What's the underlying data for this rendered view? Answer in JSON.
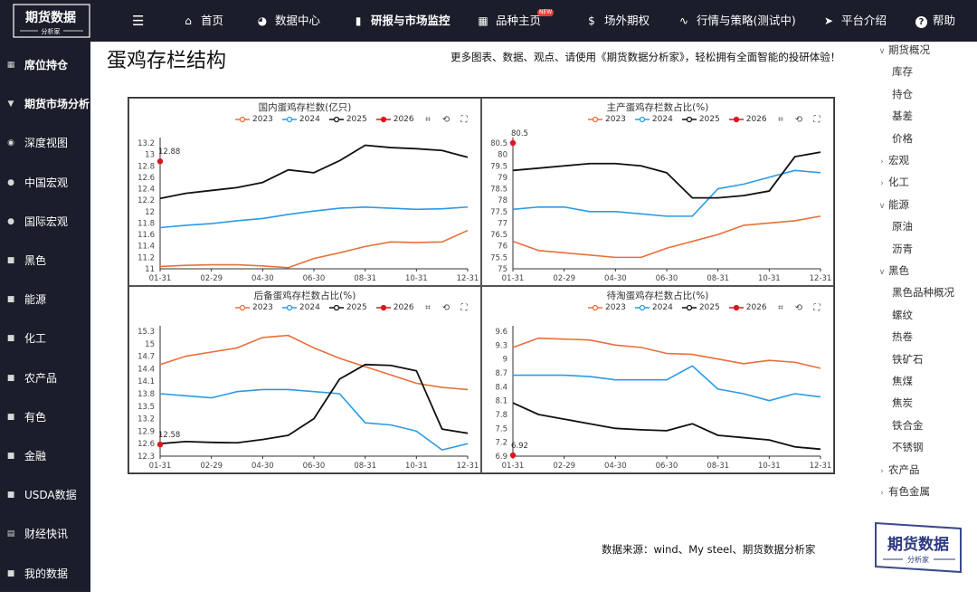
{
  "brand": {
    "name": "期货数据",
    "sub": "分析家"
  },
  "topnav": {
    "items": [
      {
        "label": "首页",
        "icon": "home-icon"
      },
      {
        "label": "数据中心",
        "icon": "pie-icon"
      },
      {
        "label": "研报与市场监控",
        "icon": "bar-chart-icon",
        "active": true
      },
      {
        "label": "品种主页",
        "icon": "grid-icon",
        "badge": "NEW"
      },
      {
        "label": "场外期权",
        "icon": "dollar-icon"
      },
      {
        "label": "行情与策略(测试中)",
        "icon": "pulse-icon"
      },
      {
        "label": "平台介绍",
        "icon": "send-icon"
      },
      {
        "label": "帮助",
        "icon": "help-icon"
      }
    ]
  },
  "sidebar": {
    "items": [
      {
        "label": "席位持仓",
        "icon": "grid-icon",
        "bold": true
      },
      {
        "label": "期货市场分析",
        "icon": "funnel-icon",
        "bold": true
      },
      {
        "label": "深度视图",
        "icon": "eye-icon"
      },
      {
        "label": "中国宏观",
        "icon": "dot-icon"
      },
      {
        "label": "国际宏观",
        "icon": "dot-icon"
      },
      {
        "label": "黑色",
        "icon": "cube-icon"
      },
      {
        "label": "能源",
        "icon": "cube-icon"
      },
      {
        "label": "化工",
        "icon": "cube-icon"
      },
      {
        "label": "农产品",
        "icon": "cube-icon"
      },
      {
        "label": "有色",
        "icon": "cube-icon"
      },
      {
        "label": "金融",
        "icon": "cube-icon"
      },
      {
        "label": "USDA数据",
        "icon": "cube-icon"
      },
      {
        "label": "财经快讯",
        "icon": "doc-icon"
      },
      {
        "label": "我的数据",
        "icon": "cube-icon"
      }
    ]
  },
  "page": {
    "title": "蛋鸡存栏结构",
    "promo": "更多图表、数据、观点、请使用《期货数据分析家》，轻松拥有全面智能的投研体验！",
    "source": "数据来源：wind、My steel、期货数据分析家"
  },
  "rightnav": {
    "items": [
      {
        "label": "期货概况",
        "type": "grp",
        "chev": "down"
      },
      {
        "label": "库存",
        "type": "sub"
      },
      {
        "label": "持仓",
        "type": "sub"
      },
      {
        "label": "基差",
        "type": "sub"
      },
      {
        "label": "价格",
        "type": "sub"
      },
      {
        "label": "宏观",
        "type": "grp",
        "chev": "right"
      },
      {
        "label": "化工",
        "type": "grp",
        "chev": "right"
      },
      {
        "label": "能源",
        "type": "grp",
        "chev": "down"
      },
      {
        "label": "原油",
        "type": "sub"
      },
      {
        "label": "沥青",
        "type": "sub"
      },
      {
        "label": "黑色",
        "type": "grp",
        "chev": "down"
      },
      {
        "label": "黑色品种概况",
        "type": "sub"
      },
      {
        "label": "螺纹",
        "type": "sub"
      },
      {
        "label": "热卷",
        "type": "sub"
      },
      {
        "label": "铁矿石",
        "type": "sub"
      },
      {
        "label": "焦煤",
        "type": "sub"
      },
      {
        "label": "焦炭",
        "type": "sub"
      },
      {
        "label": "铁合金",
        "type": "sub"
      },
      {
        "label": "不锈钢",
        "type": "sub"
      },
      {
        "label": "农产品",
        "type": "grp",
        "chev": "right"
      },
      {
        "label": "有色金属",
        "type": "grp",
        "chev": "right"
      }
    ]
  },
  "colors": {
    "s2023": "#e8703a",
    "s2024": "#2a9be3",
    "s2025": "#111111",
    "s2026": "#e0141e"
  },
  "chart_data": [
    {
      "type": "line",
      "title": "国内蛋鸡存栏数(亿只)",
      "x_ticks": [
        "01-31",
        "02-29",
        "04-30",
        "06-30",
        "08-31",
        "10-31",
        "12-31"
      ],
      "yticks": [
        11,
        11.2,
        11.4,
        11.6,
        11.8,
        12,
        12.2,
        12.4,
        12.6,
        12.8,
        13,
        13.2
      ],
      "ylim": [
        11,
        13.2
      ],
      "series": [
        {
          "name": "2023",
          "values": [
            11.04,
            11.06,
            11.07,
            11.07,
            11.05,
            11.02,
            11.18,
            11.28,
            11.39,
            11.47,
            11.46,
            11.47,
            11.67
          ]
        },
        {
          "name": "2024",
          "values": [
            11.72,
            11.76,
            11.79,
            11.84,
            11.88,
            11.95,
            12.01,
            12.06,
            12.08,
            12.06,
            12.04,
            12.05,
            12.08
          ]
        },
        {
          "name": "2025",
          "values": [
            12.23,
            12.32,
            12.37,
            12.42,
            12.51,
            12.73,
            12.68,
            12.89,
            13.16,
            13.12,
            13.1,
            13.07,
            12.95
          ]
        },
        {
          "name": "2026",
          "values": [
            12.88
          ]
        }
      ],
      "annotation": "12.88"
    },
    {
      "type": "line",
      "title": "主产蛋鸡存栏数占比(%)",
      "x_ticks": [
        "01-31",
        "02-29",
        "04-30",
        "06-30",
        "08-31",
        "10-31",
        "12-31"
      ],
      "yticks": [
        75,
        75.5,
        76,
        76.5,
        77,
        77.5,
        78,
        78.5,
        79,
        79.5,
        80,
        80.5
      ],
      "ylim": [
        75,
        80.5
      ],
      "series": [
        {
          "name": "2023",
          "values": [
            76.2,
            75.8,
            75.7,
            75.6,
            75.5,
            75.5,
            75.9,
            76.2,
            76.5,
            76.9,
            77.0,
            77.1,
            77.3
          ]
        },
        {
          "name": "2024",
          "values": [
            77.6,
            77.7,
            77.7,
            77.5,
            77.5,
            77.4,
            77.3,
            77.3,
            78.5,
            78.7,
            79.0,
            79.3,
            79.2
          ]
        },
        {
          "name": "2025",
          "values": [
            79.3,
            79.4,
            79.5,
            79.6,
            79.6,
            79.5,
            79.2,
            78.1,
            78.1,
            78.2,
            78.4,
            79.9,
            80.1
          ]
        },
        {
          "name": "2026",
          "values": [
            80.5
          ]
        }
      ],
      "annotation": "80.5"
    },
    {
      "type": "line",
      "title": "后备蛋鸡存栏数占比(%)",
      "x_ticks": [
        "01-31",
        "02-29",
        "04-30",
        "06-30",
        "08-31",
        "10-31",
        "12-31"
      ],
      "yticks": [
        12.3,
        12.6,
        12.9,
        13.2,
        13.5,
        13.8,
        14.1,
        14.4,
        14.7,
        15,
        15.3
      ],
      "ylim": [
        12.3,
        15.3
      ],
      "series": [
        {
          "name": "2023",
          "values": [
            14.5,
            14.7,
            14.8,
            14.9,
            15.15,
            15.2,
            14.9,
            14.65,
            14.45,
            14.25,
            14.05,
            13.95,
            13.9
          ]
        },
        {
          "name": "2024",
          "values": [
            13.8,
            13.75,
            13.7,
            13.85,
            13.9,
            13.9,
            13.85,
            13.8,
            13.1,
            13.05,
            12.9,
            12.45,
            12.6
          ]
        },
        {
          "name": "2025",
          "values": [
            12.6,
            12.65,
            12.63,
            12.62,
            12.7,
            12.8,
            13.2,
            14.15,
            14.5,
            14.48,
            14.35,
            12.95,
            12.85
          ]
        },
        {
          "name": "2026",
          "values": [
            12.58
          ]
        }
      ],
      "annotation": "12.58"
    },
    {
      "type": "line",
      "title": "待淘蛋鸡存栏数占比(%)",
      "x_ticks": [
        "01-31",
        "02-29",
        "04-30",
        "06-30",
        "08-31",
        "10-31",
        "12-31"
      ],
      "yticks": [
        6.9,
        7.2,
        7.5,
        7.8,
        8.1,
        8.4,
        8.7,
        9,
        9.3,
        9.6
      ],
      "ylim": [
        6.9,
        9.6
      ],
      "series": [
        {
          "name": "2023",
          "values": [
            9.25,
            9.45,
            9.43,
            9.41,
            9.3,
            9.25,
            9.12,
            9.1,
            9.0,
            8.9,
            8.97,
            8.93,
            8.8
          ]
        },
        {
          "name": "2024",
          "values": [
            8.65,
            8.65,
            8.65,
            8.62,
            8.55,
            8.55,
            8.55,
            8.85,
            8.35,
            8.25,
            8.1,
            8.25,
            8.18
          ]
        },
        {
          "name": "2025",
          "values": [
            8.05,
            7.8,
            7.7,
            7.6,
            7.5,
            7.47,
            7.45,
            7.6,
            7.35,
            7.3,
            7.25,
            7.1,
            7.05
          ]
        },
        {
          "name": "2026",
          "values": [
            6.92
          ]
        }
      ],
      "annotation": "6.92"
    }
  ]
}
